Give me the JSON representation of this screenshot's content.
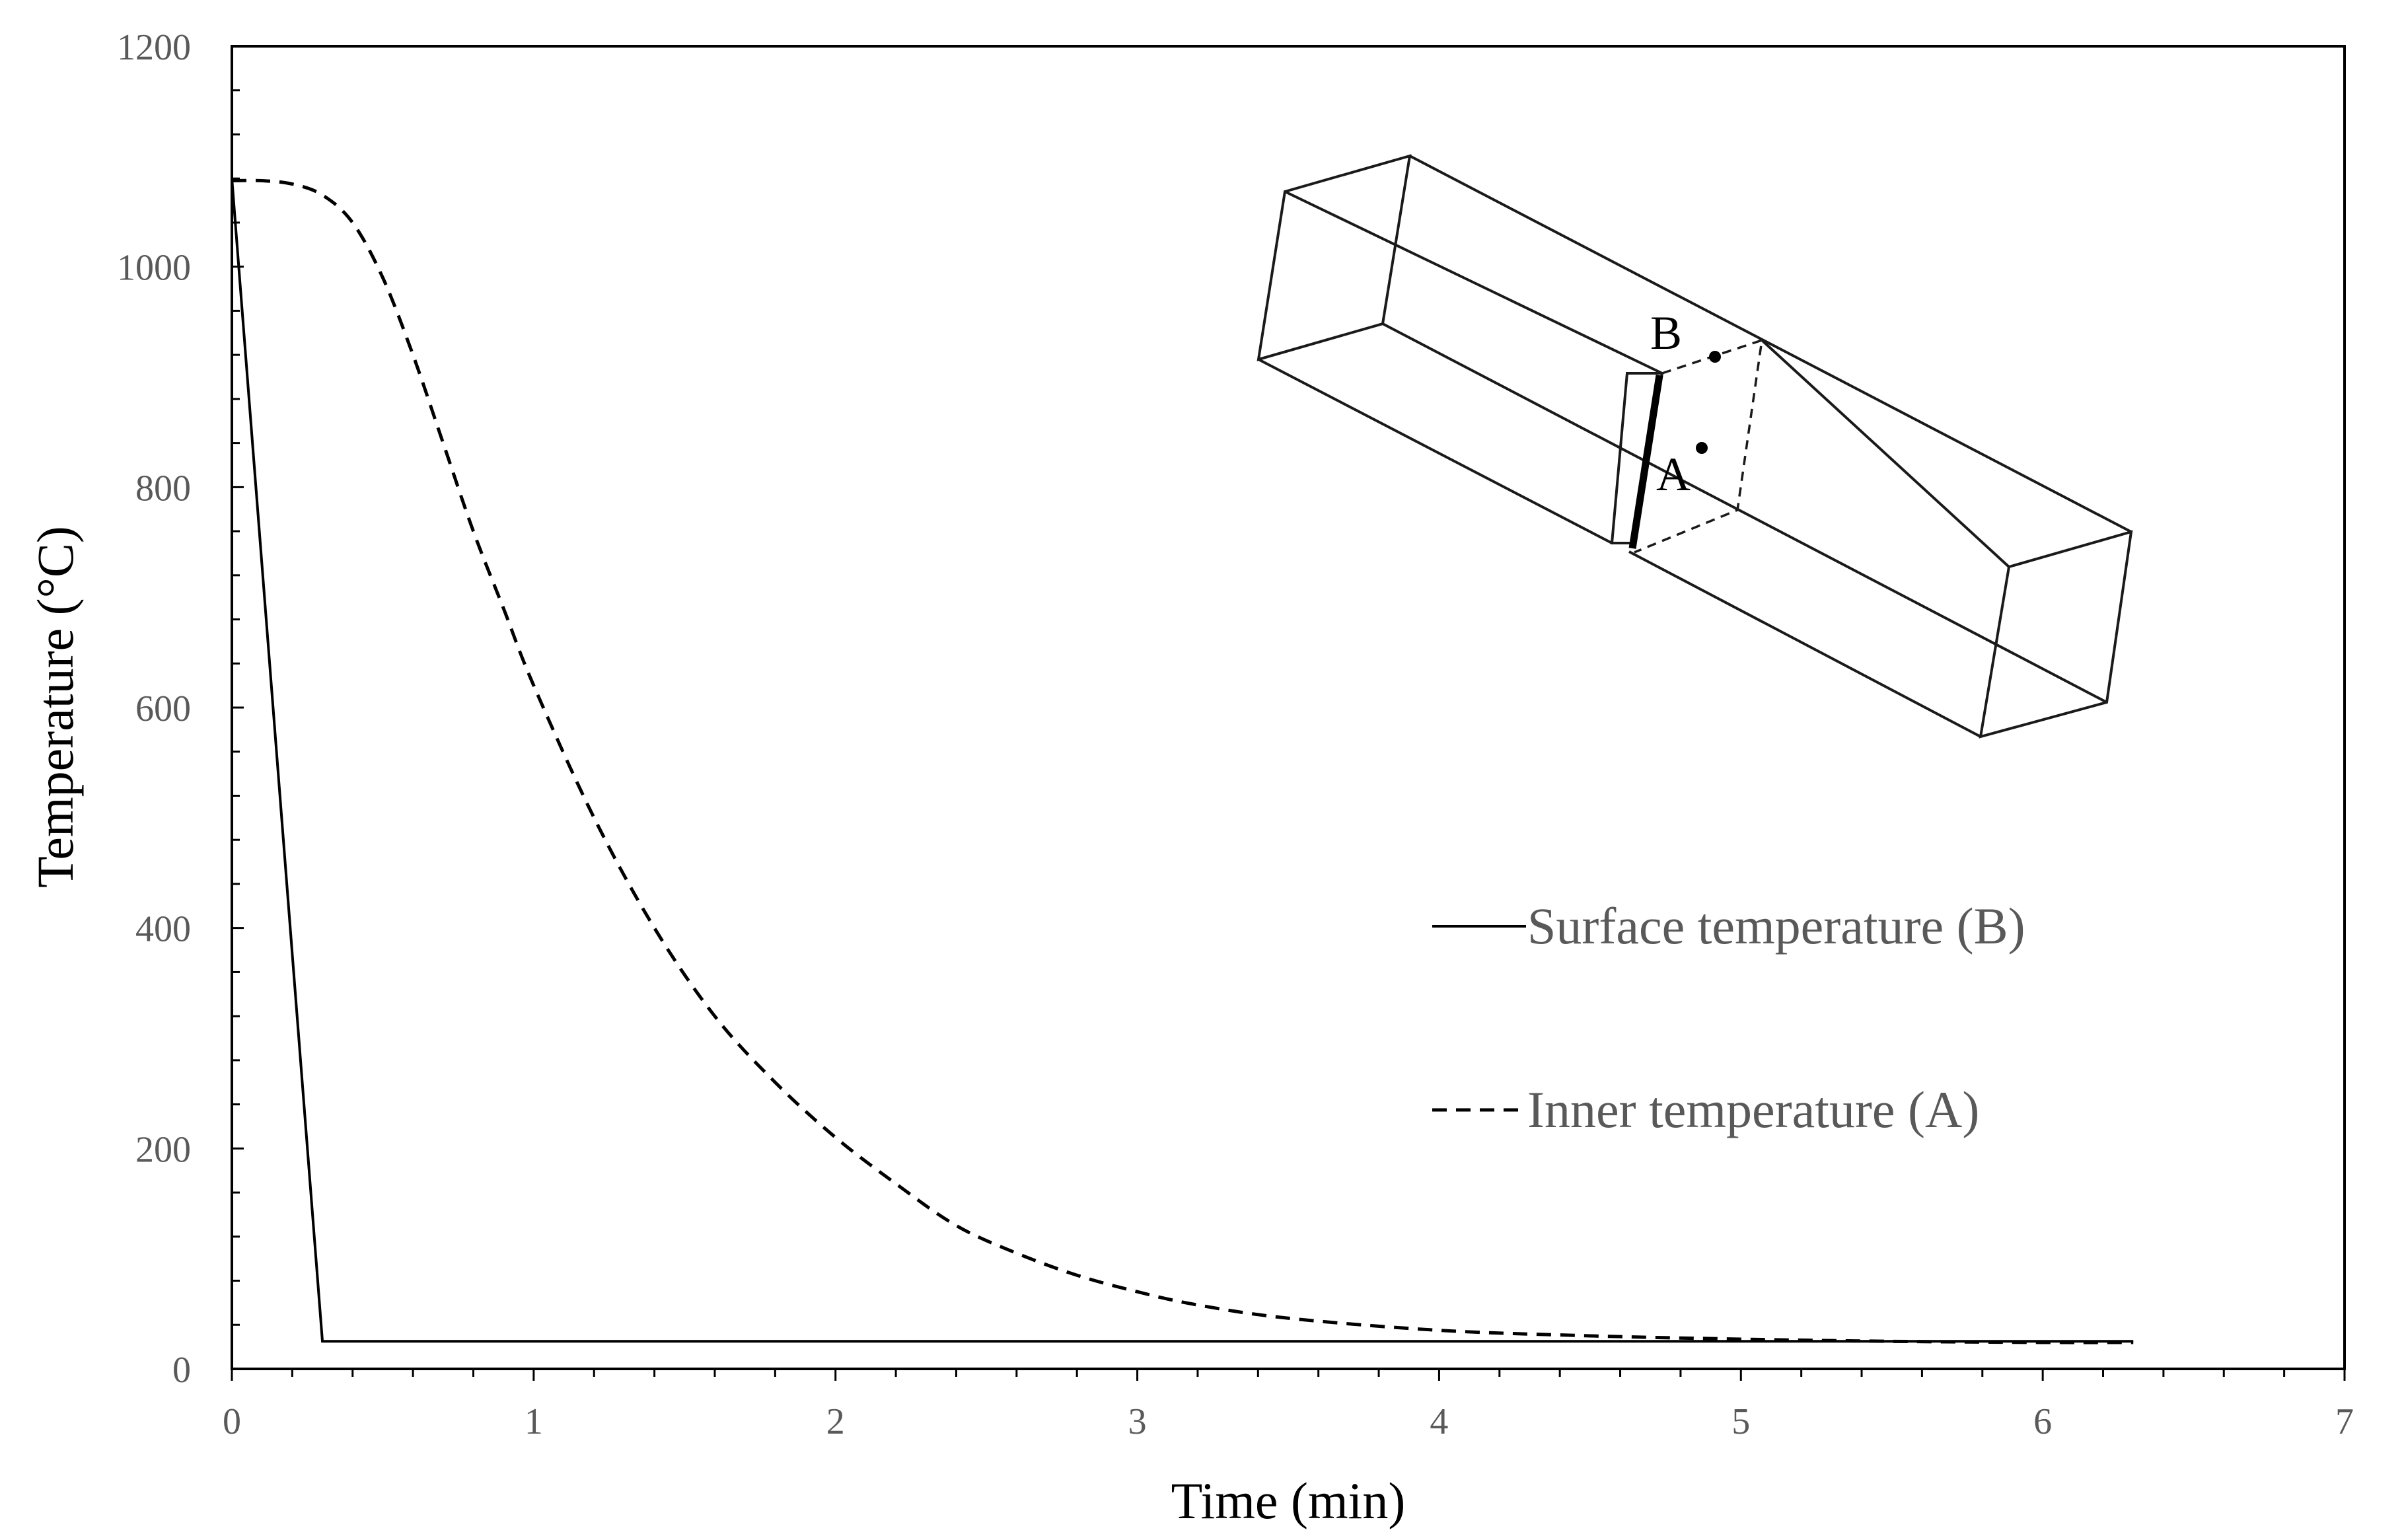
{
  "chart_data": {
    "type": "line",
    "xlabel": "Time (min)",
    "ylabel": "Temperature (°C)",
    "xlim": [
      0,
      7
    ],
    "ylim": [
      0,
      1200
    ],
    "x_ticks": [
      0,
      1,
      2,
      3,
      4,
      5,
      6,
      7
    ],
    "y_ticks": [
      0,
      200,
      400,
      600,
      800,
      1000,
      1200
    ],
    "grid": false,
    "legend_position": "center-right",
    "series": [
      {
        "name": "Surface temperature (B)",
        "style": "solid",
        "color": "#000000",
        "x": [
          0,
          0.3,
          6.3
        ],
        "y": [
          1080,
          25,
          25
        ]
      },
      {
        "name": "Inner temperature (A)",
        "style": "dashed",
        "color": "#000000",
        "x": [
          0,
          0.1,
          0.2,
          0.3,
          0.4,
          0.5,
          0.6,
          0.7,
          0.8,
          0.9,
          1.0,
          1.2,
          1.4,
          1.6,
          1.8,
          2.0,
          2.2,
          2.4,
          2.6,
          2.8,
          3.0,
          3.2,
          3.5,
          4.0,
          4.5,
          5.0,
          5.5,
          6.0,
          6.3
        ],
        "y": [
          1078,
          1078,
          1075,
          1065,
          1040,
          990,
          920,
          840,
          760,
          690,
          620,
          500,
          400,
          320,
          260,
          210,
          168,
          130,
          105,
          85,
          70,
          58,
          46,
          35,
          30,
          27,
          25,
          24,
          24
        ]
      }
    ],
    "inset": {
      "label_b": "B",
      "label_a": "A"
    }
  }
}
